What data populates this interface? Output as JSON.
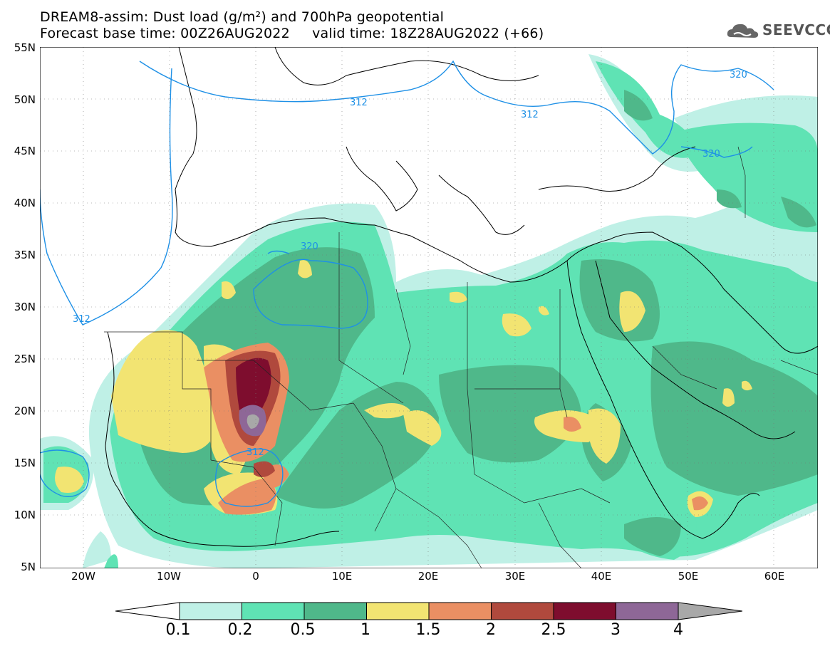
{
  "title": {
    "line1": "DREAM8-assim: Dust load (g/m²) and 700hPa geopotential",
    "line2": "Forecast base time: 00Z26AUG2022     valid time: 18Z28AUG2022 (+66)"
  },
  "logo": {
    "text": "SEEVCCC",
    "icon": "cloud-icon"
  },
  "map": {
    "lat_labels": [
      "55N",
      "50N",
      "45N",
      "40N",
      "35N",
      "30N",
      "25N",
      "20N",
      "15N",
      "10N",
      "5N"
    ],
    "lon_labels": [
      "20W",
      "10W",
      "0",
      "10E",
      "20E",
      "30E",
      "40E",
      "50E",
      "60E"
    ],
    "contour_labels": [
      "312",
      "312",
      "320",
      "320",
      "320",
      "312",
      "312"
    ]
  },
  "colorbar": {
    "labels": [
      "0.1",
      "0.2",
      "0.5",
      "1",
      "1.5",
      "2",
      "2.5",
      "3",
      "4"
    ],
    "colors": [
      "#bff0e6",
      "#5fe3b4",
      "#4fb88a",
      "#f2e472",
      "#ea8f63",
      "#b0493d",
      "#7e0d2e",
      "#8e6797",
      "#a8a8a8"
    ]
  },
  "colors": {
    "level_01": "#bff0e6",
    "level_02": "#5fe3b4",
    "level_05": "#4fb88a",
    "level_1": "#f2e472",
    "level_15": "#ea8f63",
    "level_2": "#b0493d",
    "level_25": "#7e0d2e",
    "level_3": "#8e6797",
    "level_4": "#a8a8a8",
    "contour": "#1e90e6"
  }
}
